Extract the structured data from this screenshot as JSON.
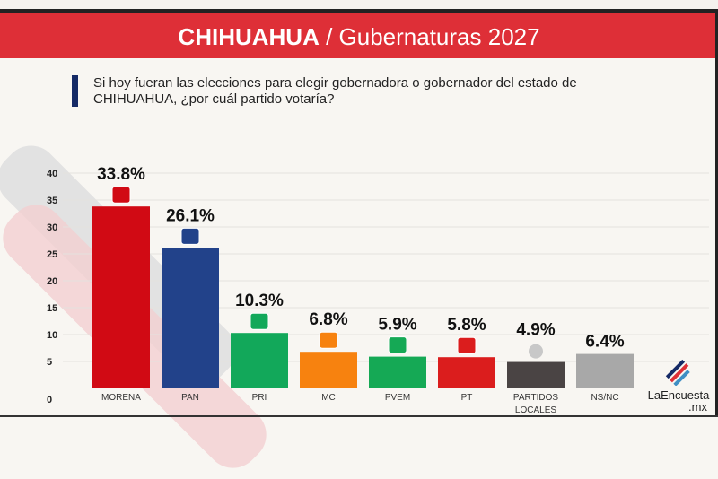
{
  "header": {
    "title_bold": "CHIHUAHUA",
    "title_rest": " / Gubernaturas 2027",
    "question": "Si hoy fueran las elecciones para elegir gobernadora o gobernador del estado de CHIHUAHUA, ¿por cuál partido votaría?"
  },
  "brand": {
    "name": "LaEncuesta",
    "suffix": ".mx"
  },
  "colors": {
    "banner": "#de2f37",
    "accent": "#152a66"
  },
  "chart_data": {
    "type": "bar",
    "title": "",
    "ylim": [
      0,
      40
    ],
    "yticks": [
      0,
      5,
      10,
      15,
      20,
      25,
      30,
      35,
      40
    ],
    "grid": true,
    "categories": [
      "MORENA",
      "PAN",
      "PRI",
      "MC",
      "PVEM",
      "PT",
      "PARTIDOS LOCALES",
      "NS/NC"
    ],
    "values": [
      33.8,
      26.1,
      10.3,
      6.8,
      5.9,
      5.8,
      4.9,
      6.4
    ],
    "labels": [
      "33.8%",
      "26.1%",
      "10.3%",
      "6.8%",
      "5.9%",
      "5.8%",
      "4.9%",
      "6.4%"
    ],
    "bar_colors": [
      "#d10a14",
      "#22428a",
      "#12a85a",
      "#f7820f",
      "#15a955",
      "#db1d1d",
      "#4a4444",
      "#a8a8a8"
    ],
    "icons": [
      "morena-logo",
      "pan-logo",
      "pri-logo",
      "mc-logo",
      "pvem-logo",
      "pt-logo",
      "person-icon",
      ""
    ]
  }
}
